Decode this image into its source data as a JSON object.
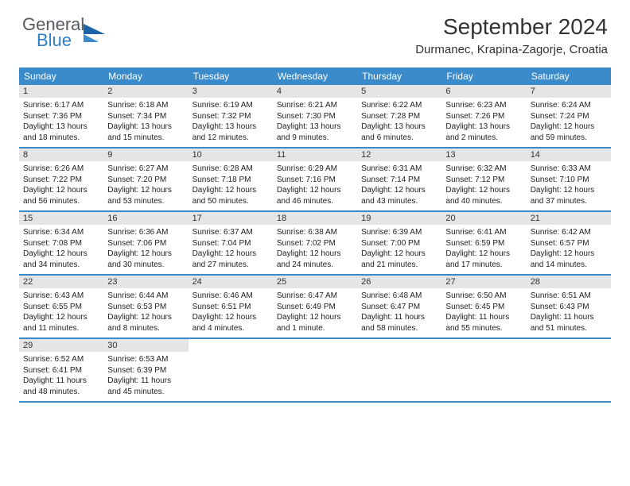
{
  "logo": {
    "general": "General",
    "blue": "Blue"
  },
  "title": "September 2024",
  "location": "Durmanec, Krapina-Zagorje, Croatia",
  "colors": {
    "header_bg": "#3b8bca",
    "header_fg": "#ffffff",
    "daynum_bg": "#e5e5e5",
    "row_border": "#3b8bca",
    "logo_text": "#555a60",
    "logo_blue": "#2f7ec2"
  },
  "weekdays": [
    "Sunday",
    "Monday",
    "Tuesday",
    "Wednesday",
    "Thursday",
    "Friday",
    "Saturday"
  ],
  "weeks": [
    [
      {
        "n": "1",
        "sr": "6:17 AM",
        "ss": "7:36 PM",
        "dl": "13 hours and 18 minutes."
      },
      {
        "n": "2",
        "sr": "6:18 AM",
        "ss": "7:34 PM",
        "dl": "13 hours and 15 minutes."
      },
      {
        "n": "3",
        "sr": "6:19 AM",
        "ss": "7:32 PM",
        "dl": "13 hours and 12 minutes."
      },
      {
        "n": "4",
        "sr": "6:21 AM",
        "ss": "7:30 PM",
        "dl": "13 hours and 9 minutes."
      },
      {
        "n": "5",
        "sr": "6:22 AM",
        "ss": "7:28 PM",
        "dl": "13 hours and 6 minutes."
      },
      {
        "n": "6",
        "sr": "6:23 AM",
        "ss": "7:26 PM",
        "dl": "13 hours and 2 minutes."
      },
      {
        "n": "7",
        "sr": "6:24 AM",
        "ss": "7:24 PM",
        "dl": "12 hours and 59 minutes."
      }
    ],
    [
      {
        "n": "8",
        "sr": "6:26 AM",
        "ss": "7:22 PM",
        "dl": "12 hours and 56 minutes."
      },
      {
        "n": "9",
        "sr": "6:27 AM",
        "ss": "7:20 PM",
        "dl": "12 hours and 53 minutes."
      },
      {
        "n": "10",
        "sr": "6:28 AM",
        "ss": "7:18 PM",
        "dl": "12 hours and 50 minutes."
      },
      {
        "n": "11",
        "sr": "6:29 AM",
        "ss": "7:16 PM",
        "dl": "12 hours and 46 minutes."
      },
      {
        "n": "12",
        "sr": "6:31 AM",
        "ss": "7:14 PM",
        "dl": "12 hours and 43 minutes."
      },
      {
        "n": "13",
        "sr": "6:32 AM",
        "ss": "7:12 PM",
        "dl": "12 hours and 40 minutes."
      },
      {
        "n": "14",
        "sr": "6:33 AM",
        "ss": "7:10 PM",
        "dl": "12 hours and 37 minutes."
      }
    ],
    [
      {
        "n": "15",
        "sr": "6:34 AM",
        "ss": "7:08 PM",
        "dl": "12 hours and 34 minutes."
      },
      {
        "n": "16",
        "sr": "6:36 AM",
        "ss": "7:06 PM",
        "dl": "12 hours and 30 minutes."
      },
      {
        "n": "17",
        "sr": "6:37 AM",
        "ss": "7:04 PM",
        "dl": "12 hours and 27 minutes."
      },
      {
        "n": "18",
        "sr": "6:38 AM",
        "ss": "7:02 PM",
        "dl": "12 hours and 24 minutes."
      },
      {
        "n": "19",
        "sr": "6:39 AM",
        "ss": "7:00 PM",
        "dl": "12 hours and 21 minutes."
      },
      {
        "n": "20",
        "sr": "6:41 AM",
        "ss": "6:59 PM",
        "dl": "12 hours and 17 minutes."
      },
      {
        "n": "21",
        "sr": "6:42 AM",
        "ss": "6:57 PM",
        "dl": "12 hours and 14 minutes."
      }
    ],
    [
      {
        "n": "22",
        "sr": "6:43 AM",
        "ss": "6:55 PM",
        "dl": "12 hours and 11 minutes."
      },
      {
        "n": "23",
        "sr": "6:44 AM",
        "ss": "6:53 PM",
        "dl": "12 hours and 8 minutes."
      },
      {
        "n": "24",
        "sr": "6:46 AM",
        "ss": "6:51 PM",
        "dl": "12 hours and 4 minutes."
      },
      {
        "n": "25",
        "sr": "6:47 AM",
        "ss": "6:49 PM",
        "dl": "12 hours and 1 minute."
      },
      {
        "n": "26",
        "sr": "6:48 AM",
        "ss": "6:47 PM",
        "dl": "11 hours and 58 minutes."
      },
      {
        "n": "27",
        "sr": "6:50 AM",
        "ss": "6:45 PM",
        "dl": "11 hours and 55 minutes."
      },
      {
        "n": "28",
        "sr": "6:51 AM",
        "ss": "6:43 PM",
        "dl": "11 hours and 51 minutes."
      }
    ],
    [
      {
        "n": "29",
        "sr": "6:52 AM",
        "ss": "6:41 PM",
        "dl": "11 hours and 48 minutes."
      },
      {
        "n": "30",
        "sr": "6:53 AM",
        "ss": "6:39 PM",
        "dl": "11 hours and 45 minutes."
      },
      null,
      null,
      null,
      null,
      null
    ]
  ]
}
